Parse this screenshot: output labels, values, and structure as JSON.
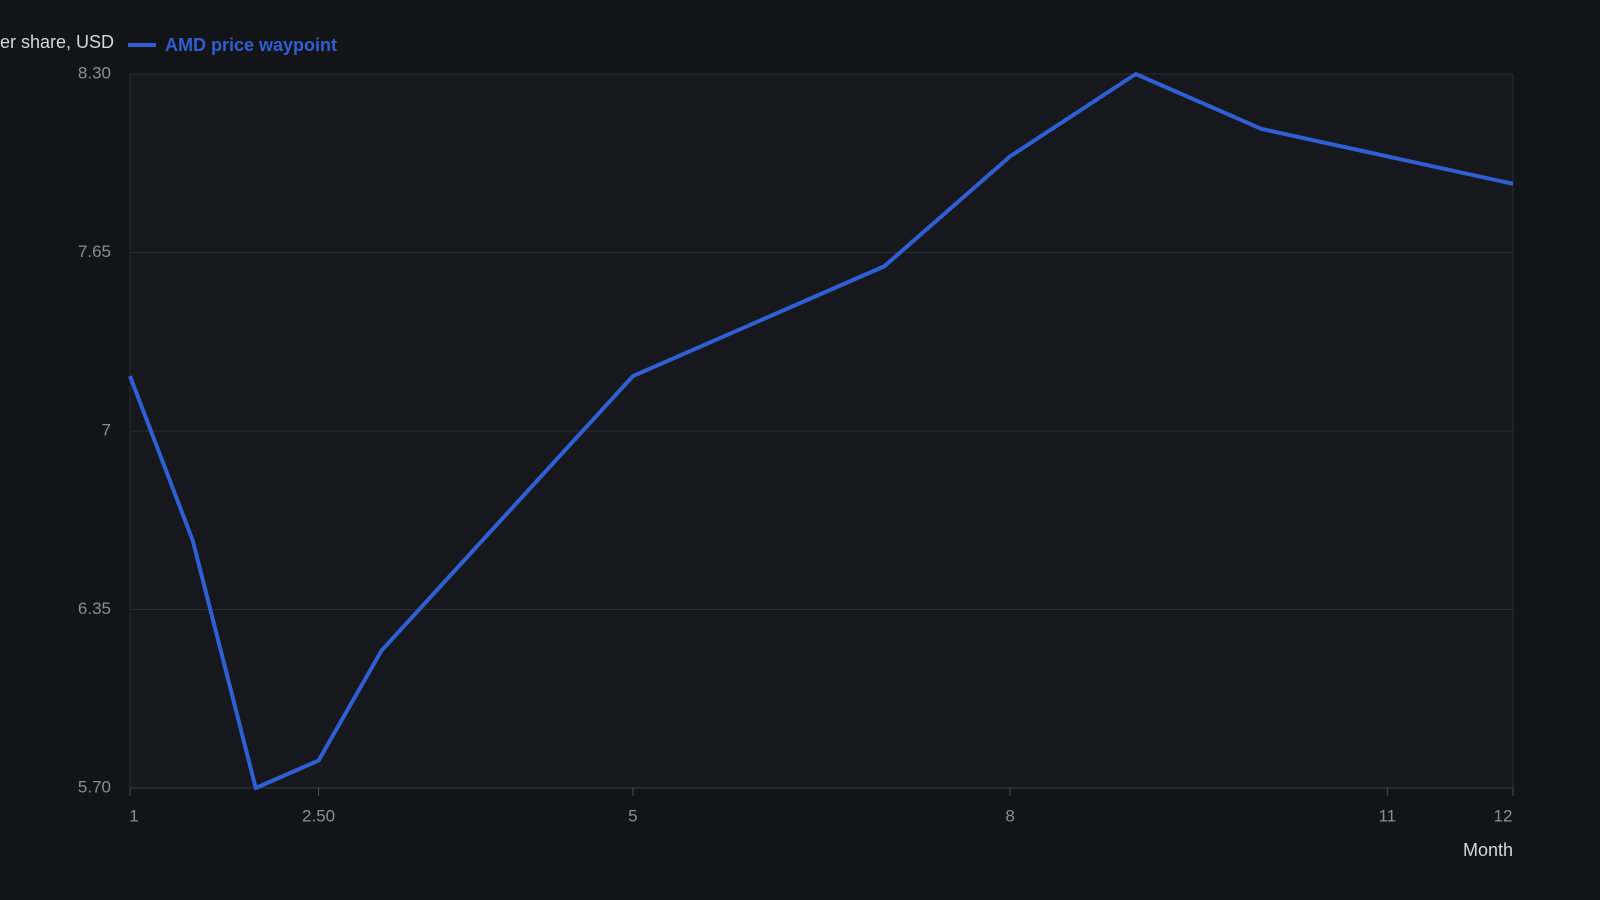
{
  "chart_data": {
    "type": "line",
    "y_label": "er share, USD",
    "x_label": "Month",
    "x": [
      1,
      1.5,
      2,
      2.5,
      3,
      5,
      7,
      8,
      9,
      10,
      12
    ],
    "series": [
      {
        "name": "AMD price waypoint",
        "color": "#2f5fd3",
        "values": [
          7.2,
          6.6,
          5.7,
          5.8,
          6.2,
          7.2,
          7.6,
          8.0,
          8.3,
          8.1,
          7.9
        ]
      }
    ],
    "xlim": [
      1,
      12
    ],
    "xticks": [
      1,
      {
        "value": 2.5,
        "label": "2.50"
      },
      5,
      8,
      11,
      12
    ],
    "ylim": [
      5.7,
      8.3
    ],
    "yticks": [
      {
        "value": 5.7,
        "label": "5.70"
      },
      6.35,
      7,
      7.65,
      {
        "value": 8.3,
        "label": "8.30"
      }
    ],
    "grid": true
  }
}
